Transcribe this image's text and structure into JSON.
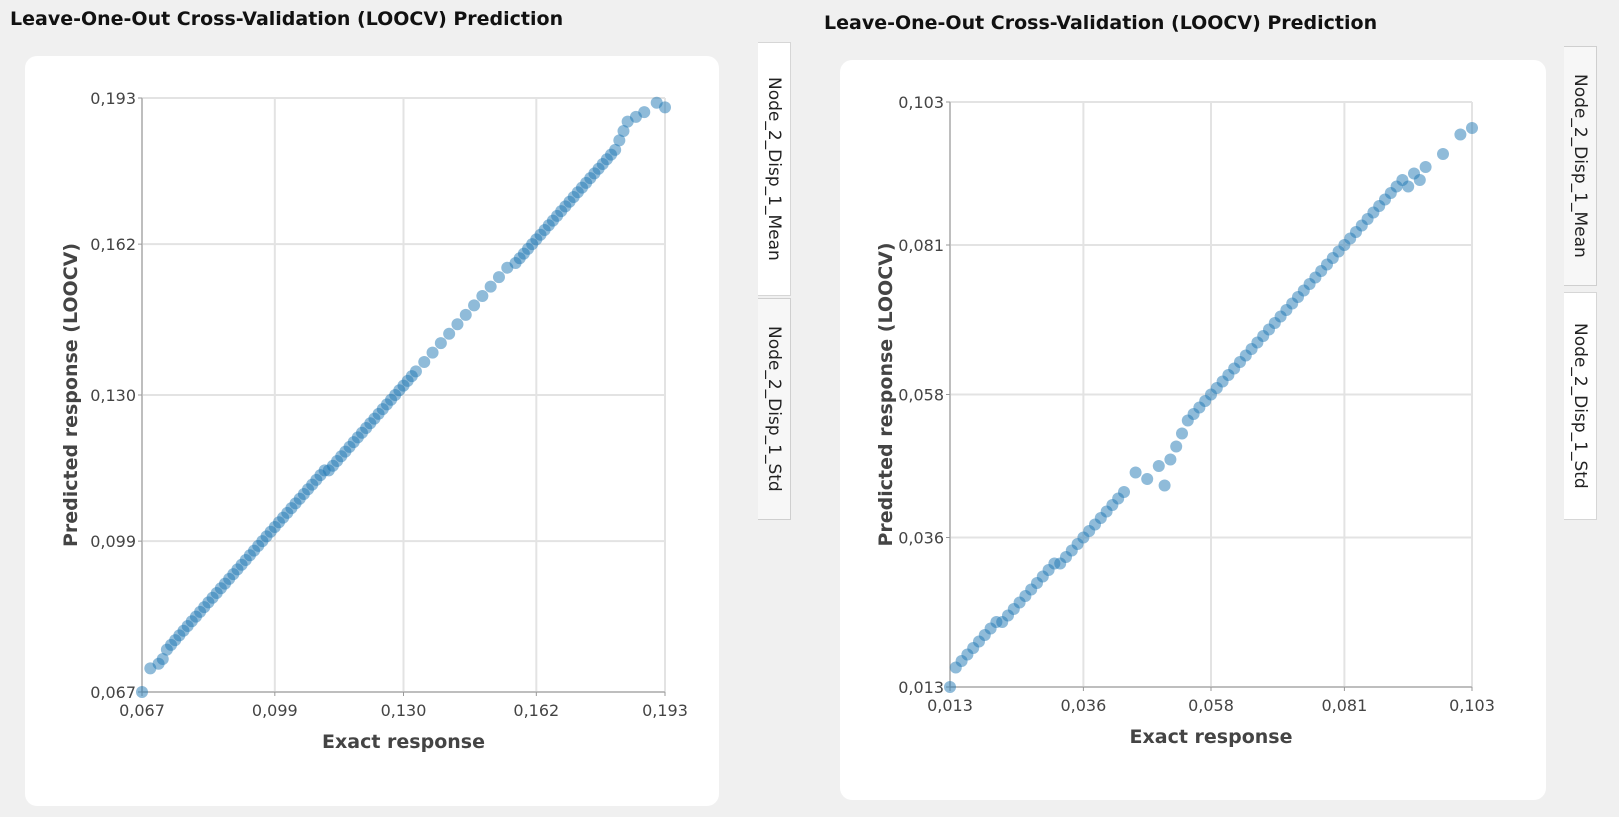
{
  "panels": [
    {
      "title": "Leave-One-Out Cross-Validation (LOOCV) Prediction",
      "tabs": [
        {
          "label": "Node_2_Disp_1_Mean",
          "active": true
        },
        {
          "label": "Node_2_Disp_1_Std",
          "active": false
        }
      ]
    },
    {
      "title": "Leave-One-Out Cross-Validation (LOOCV) Prediction",
      "tabs": [
        {
          "label": "Node_2_Disp_1_Mean",
          "active": false
        },
        {
          "label": "Node_2_Disp_1_Std",
          "active": true
        }
      ]
    }
  ],
  "chart_data": [
    {
      "type": "scatter",
      "xlabel": "Exact response",
      "ylabel": "Predicted response (LOOCV)",
      "xlim": [
        0.067,
        0.193
      ],
      "ylim": [
        0.067,
        0.193
      ],
      "ticks": [
        "0,067",
        "0,099",
        "0,130",
        "0,162",
        "0,193"
      ],
      "tick_values": [
        0.067,
        0.099,
        0.13,
        0.162,
        0.193
      ],
      "grid": true,
      "point_color": "#1f77b4",
      "series": [
        {
          "x": [
            0.067,
            0.069,
            0.071,
            0.072,
            0.073,
            0.074,
            0.075,
            0.076,
            0.077,
            0.078,
            0.079,
            0.08,
            0.081,
            0.082,
            0.083,
            0.084,
            0.085,
            0.086,
            0.087,
            0.088,
            0.089,
            0.09,
            0.091,
            0.092,
            0.093,
            0.094,
            0.095,
            0.096,
            0.097,
            0.098,
            0.099,
            0.1,
            0.101,
            0.102,
            0.103,
            0.104,
            0.105,
            0.106,
            0.107,
            0.108,
            0.109,
            0.11,
            0.111,
            0.112,
            0.113,
            0.114,
            0.115,
            0.116,
            0.117,
            0.118,
            0.119,
            0.12,
            0.121,
            0.122,
            0.123,
            0.124,
            0.125,
            0.126,
            0.127,
            0.128,
            0.129,
            0.13,
            0.131,
            0.132,
            0.133,
            0.135,
            0.137,
            0.139,
            0.141,
            0.143,
            0.145,
            0.147,
            0.149,
            0.151,
            0.153,
            0.155,
            0.157,
            0.158,
            0.159,
            0.16,
            0.161,
            0.162,
            0.163,
            0.164,
            0.165,
            0.166,
            0.167,
            0.168,
            0.169,
            0.17,
            0.171,
            0.172,
            0.173,
            0.174,
            0.175,
            0.176,
            0.177,
            0.178,
            0.179,
            0.18,
            0.181,
            0.182,
            0.183,
            0.184,
            0.186,
            0.188,
            0.191,
            0.193
          ],
          "y": [
            0.067,
            0.072,
            0.073,
            0.074,
            0.076,
            0.077,
            0.078,
            0.079,
            0.08,
            0.081,
            0.082,
            0.083,
            0.084,
            0.085,
            0.086,
            0.087,
            0.088,
            0.089,
            0.09,
            0.091,
            0.092,
            0.093,
            0.094,
            0.095,
            0.096,
            0.097,
            0.098,
            0.099,
            0.1,
            0.101,
            0.102,
            0.103,
            0.104,
            0.105,
            0.106,
            0.107,
            0.108,
            0.109,
            0.11,
            0.111,
            0.112,
            0.113,
            0.114,
            0.114,
            0.115,
            0.116,
            0.117,
            0.118,
            0.119,
            0.12,
            0.121,
            0.122,
            0.123,
            0.124,
            0.125,
            0.126,
            0.127,
            0.128,
            0.129,
            0.13,
            0.131,
            0.132,
            0.133,
            0.134,
            0.135,
            0.137,
            0.139,
            0.141,
            0.143,
            0.145,
            0.147,
            0.149,
            0.151,
            0.153,
            0.155,
            0.157,
            0.158,
            0.159,
            0.16,
            0.161,
            0.162,
            0.163,
            0.164,
            0.165,
            0.166,
            0.167,
            0.168,
            0.169,
            0.17,
            0.171,
            0.172,
            0.173,
            0.174,
            0.175,
            0.176,
            0.177,
            0.178,
            0.179,
            0.18,
            0.181,
            0.182,
            0.184,
            0.186,
            0.188,
            0.189,
            0.19,
            0.192,
            0.191
          ]
        }
      ]
    },
    {
      "type": "scatter",
      "xlabel": "Exact response",
      "ylabel": "Predicted response (LOOCV)",
      "xlim": [
        0.013,
        0.103
      ],
      "ylim": [
        0.013,
        0.103
      ],
      "ticks": [
        "0,013",
        "0,036",
        "0,058",
        "0,081",
        "0,103"
      ],
      "tick_values": [
        0.013,
        0.036,
        0.058,
        0.081,
        0.103
      ],
      "grid": true,
      "point_color": "#1f77b4",
      "series": [
        {
          "x": [
            0.013,
            0.014,
            0.015,
            0.016,
            0.017,
            0.018,
            0.019,
            0.02,
            0.021,
            0.022,
            0.023,
            0.024,
            0.025,
            0.026,
            0.027,
            0.028,
            0.029,
            0.03,
            0.031,
            0.032,
            0.033,
            0.034,
            0.035,
            0.036,
            0.037,
            0.038,
            0.039,
            0.04,
            0.041,
            0.042,
            0.043,
            0.045,
            0.047,
            0.049,
            0.05,
            0.051,
            0.052,
            0.053,
            0.054,
            0.055,
            0.056,
            0.057,
            0.058,
            0.059,
            0.06,
            0.061,
            0.062,
            0.063,
            0.064,
            0.065,
            0.066,
            0.067,
            0.068,
            0.069,
            0.07,
            0.071,
            0.072,
            0.073,
            0.074,
            0.075,
            0.076,
            0.077,
            0.078,
            0.079,
            0.08,
            0.081,
            0.082,
            0.083,
            0.084,
            0.085,
            0.086,
            0.087,
            0.088,
            0.089,
            0.09,
            0.091,
            0.092,
            0.093,
            0.094,
            0.095,
            0.098,
            0.101,
            0.103
          ],
          "y": [
            0.013,
            0.016,
            0.017,
            0.018,
            0.019,
            0.02,
            0.021,
            0.022,
            0.023,
            0.023,
            0.024,
            0.025,
            0.026,
            0.027,
            0.028,
            0.029,
            0.03,
            0.031,
            0.032,
            0.032,
            0.033,
            0.034,
            0.035,
            0.036,
            0.037,
            0.038,
            0.039,
            0.04,
            0.041,
            0.042,
            0.043,
            0.046,
            0.045,
            0.047,
            0.044,
            0.048,
            0.05,
            0.052,
            0.054,
            0.055,
            0.056,
            0.057,
            0.058,
            0.059,
            0.06,
            0.061,
            0.062,
            0.063,
            0.064,
            0.065,
            0.066,
            0.067,
            0.068,
            0.069,
            0.07,
            0.071,
            0.072,
            0.073,
            0.074,
            0.075,
            0.076,
            0.077,
            0.078,
            0.079,
            0.08,
            0.081,
            0.082,
            0.083,
            0.084,
            0.085,
            0.086,
            0.087,
            0.088,
            0.089,
            0.09,
            0.091,
            0.09,
            0.092,
            0.091,
            0.093,
            0.095,
            0.098,
            0.099
          ]
        }
      ]
    }
  ]
}
